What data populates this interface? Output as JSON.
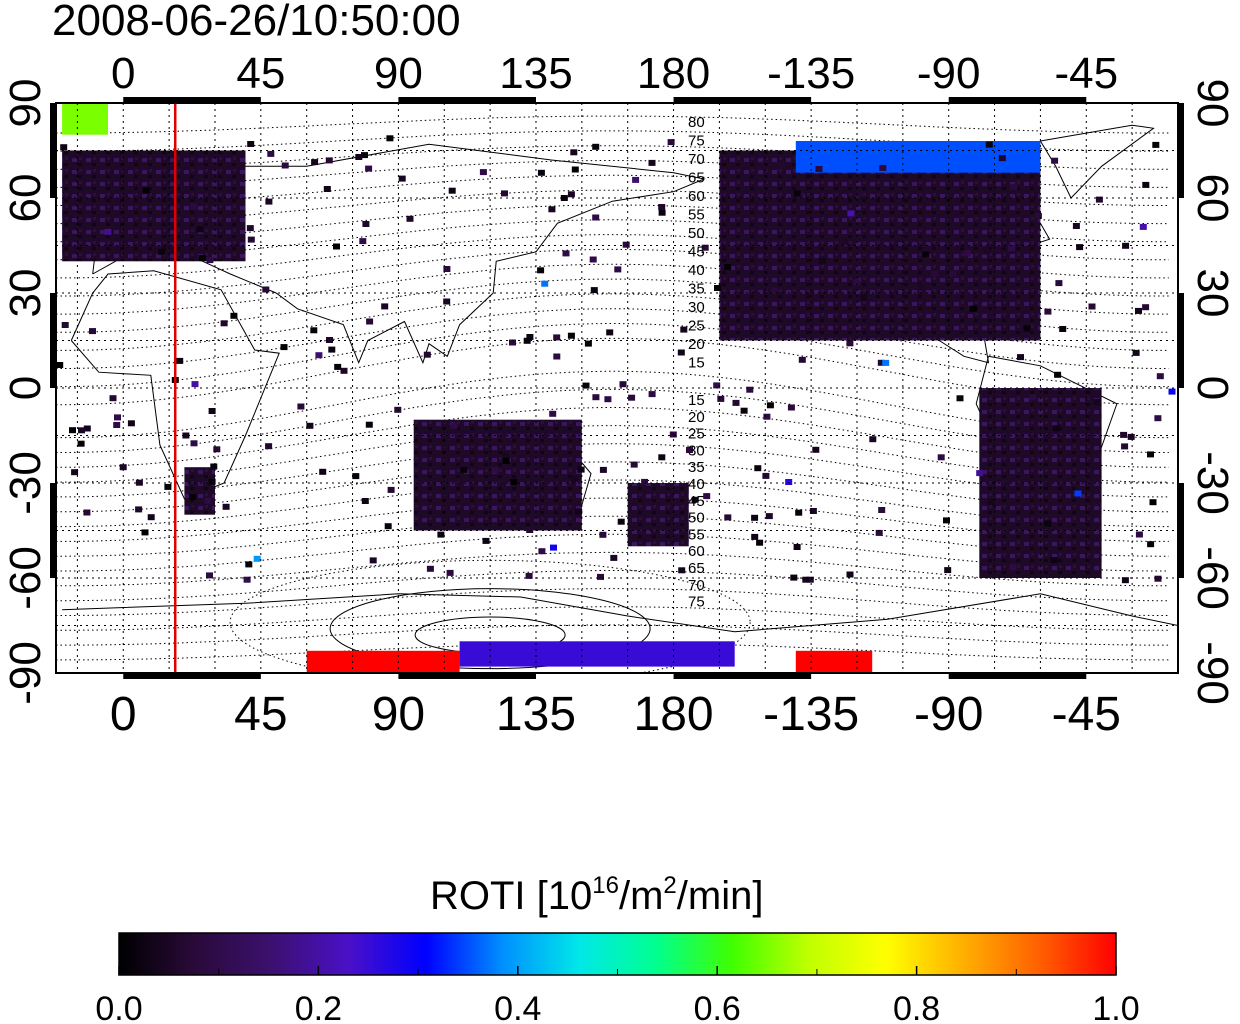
{
  "timestamp": "2008-06-26/10:50:00",
  "map": {
    "type": "heatmap",
    "projection": "equirectangular",
    "lon_ticks": [
      "0",
      "45",
      "90",
      "135",
      "180",
      "-135",
      "-90",
      "-45"
    ],
    "lon_tick_values": [
      0,
      45,
      90,
      135,
      180,
      225,
      270,
      315
    ],
    "lat_ticks": [
      "90",
      "60",
      "30",
      "0",
      "-30",
      "-60",
      "-90"
    ],
    "lat_tick_values": [
      90,
      60,
      30,
      0,
      -30,
      -60,
      -90
    ],
    "xlim": [
      -22,
      345
    ],
    "ylim": [
      -90,
      90
    ],
    "grid": true,
    "terminator_lon": 17,
    "terminator_color": "#e00000",
    "magnetic_lat_labels_north": [
      "80",
      "75",
      "70",
      "65",
      "60",
      "55",
      "50",
      "45",
      "40",
      "35",
      "30",
      "25",
      "20",
      "15"
    ],
    "magnetic_lat_labels_south": [
      "15",
      "20",
      "25",
      "30",
      "35",
      "40",
      "45",
      "50",
      "55",
      "60",
      "65",
      "70",
      "75"
    ]
  },
  "colorbar": {
    "title_prefix": "ROTI  [10",
    "title_sup1": "16",
    "title_mid": "/m",
    "title_sup2": "2",
    "title_suffix": "/min]",
    "tick_labels": [
      "0.0",
      "0.2",
      "0.4",
      "0.6",
      "0.8",
      "1.0"
    ],
    "range": [
      0.0,
      1.0
    ],
    "colors": [
      "#000000",
      "#2a0a3a",
      "#3c1070",
      "#4a10c8",
      "#0000ff",
      "#0090ff",
      "#00e8e8",
      "#00ff90",
      "#40ff00",
      "#c0ff00",
      "#ffff00",
      "#ffb000",
      "#ff6000",
      "#ff0000"
    ]
  },
  "chart_data": {
    "type": "heatmap",
    "title": "2008-06-26/10:50:00",
    "value_label": "ROTI  [10^16/m^2/min]",
    "regions": [
      {
        "lon": [
          -20,
          40
        ],
        "lat": [
          40,
          75
        ],
        "value": 0.05
      },
      {
        "lon": [
          -20,
          -5
        ],
        "lat": [
          80,
          90
        ],
        "value": 0.65
      },
      {
        "lon": [
          20,
          30
        ],
        "lat": [
          -40,
          -25
        ],
        "value": 0.03
      },
      {
        "lon": [
          95,
          150
        ],
        "lat": [
          -45,
          -10
        ],
        "value": 0.03
      },
      {
        "lon": [
          165,
          185
        ],
        "lat": [
          -50,
          -30
        ],
        "value": 0.02
      },
      {
        "lon": [
          195,
          300
        ],
        "lat": [
          15,
          75
        ],
        "value": 0.06
      },
      {
        "lon": [
          220,
          300
        ],
        "lat": [
          68,
          78
        ],
        "value": 0.35
      },
      {
        "lon": [
          280,
          320
        ],
        "lat": [
          -60,
          0
        ],
        "value": 0.05
      },
      {
        "lon": [
          60,
          110
        ],
        "lat": [
          -90,
          -83
        ],
        "value": 1.0
      },
      {
        "lon": [
          220,
          245
        ],
        "lat": [
          -90,
          -83
        ],
        "value": 1.0
      },
      {
        "lon": [
          110,
          200
        ],
        "lat": [
          -88,
          -80
        ],
        "value": 0.25
      }
    ]
  }
}
